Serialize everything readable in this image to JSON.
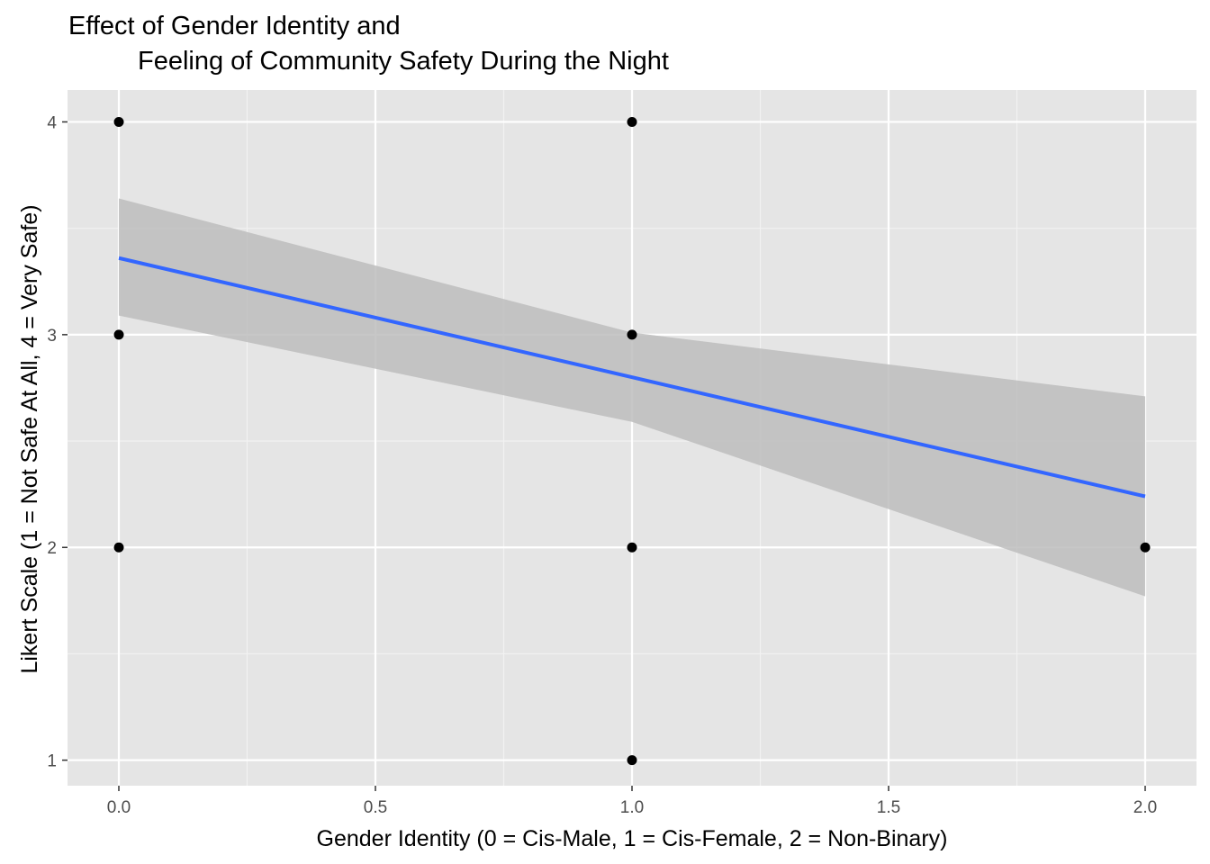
{
  "chart_data": {
    "type": "scatter",
    "title_line1": "Effect of Gender Identity and",
    "title_line2": "Feeling of Community Safety During the Night",
    "xlabel": "Gender Identity (0 = Cis-Male, 1 = Cis-Female, 2 = Non-Binary)",
    "ylabel": "Likert Scale (1 = Not Safe At All, 4 = Very Safe)",
    "xlim": [
      -0.1,
      2.1
    ],
    "ylim": [
      0.88,
      4.15
    ],
    "x_ticks": [
      {
        "value": 0.0,
        "label": "0.0"
      },
      {
        "value": 0.5,
        "label": "0.5"
      },
      {
        "value": 1.0,
        "label": "1.0"
      },
      {
        "value": 1.5,
        "label": "1.5"
      },
      {
        "value": 2.0,
        "label": "2.0"
      }
    ],
    "y_ticks": [
      {
        "value": 1,
        "label": "1"
      },
      {
        "value": 2,
        "label": "2"
      },
      {
        "value": 3,
        "label": "3"
      },
      {
        "value": 4,
        "label": "4"
      }
    ],
    "x_minor_ticks": [
      0.25,
      0.75,
      1.25,
      1.75
    ],
    "y_minor_ticks": [
      1.5,
      2.5,
      3.5
    ],
    "grid": true,
    "points": [
      {
        "x": 0,
        "y": 4
      },
      {
        "x": 0,
        "y": 3
      },
      {
        "x": 0,
        "y": 2
      },
      {
        "x": 1,
        "y": 4
      },
      {
        "x": 1,
        "y": 3
      },
      {
        "x": 1,
        "y": 2
      },
      {
        "x": 1,
        "y": 1
      },
      {
        "x": 2,
        "y": 2
      }
    ],
    "trend_line": {
      "x": [
        0,
        2
      ],
      "y": [
        3.36,
        2.24
      ]
    },
    "confidence_band": {
      "x": [
        0,
        1,
        2
      ],
      "upper": [
        3.64,
        3.01,
        2.71
      ],
      "lower": [
        3.09,
        2.59,
        1.77
      ]
    },
    "colors": {
      "panel_background": "#e5e5e5",
      "grid_major": "#ffffff",
      "grid_minor": "#f2f2f2",
      "points": "#000000",
      "trend_line": "#3366ff",
      "confidence_band": "#bdbdbd"
    }
  }
}
